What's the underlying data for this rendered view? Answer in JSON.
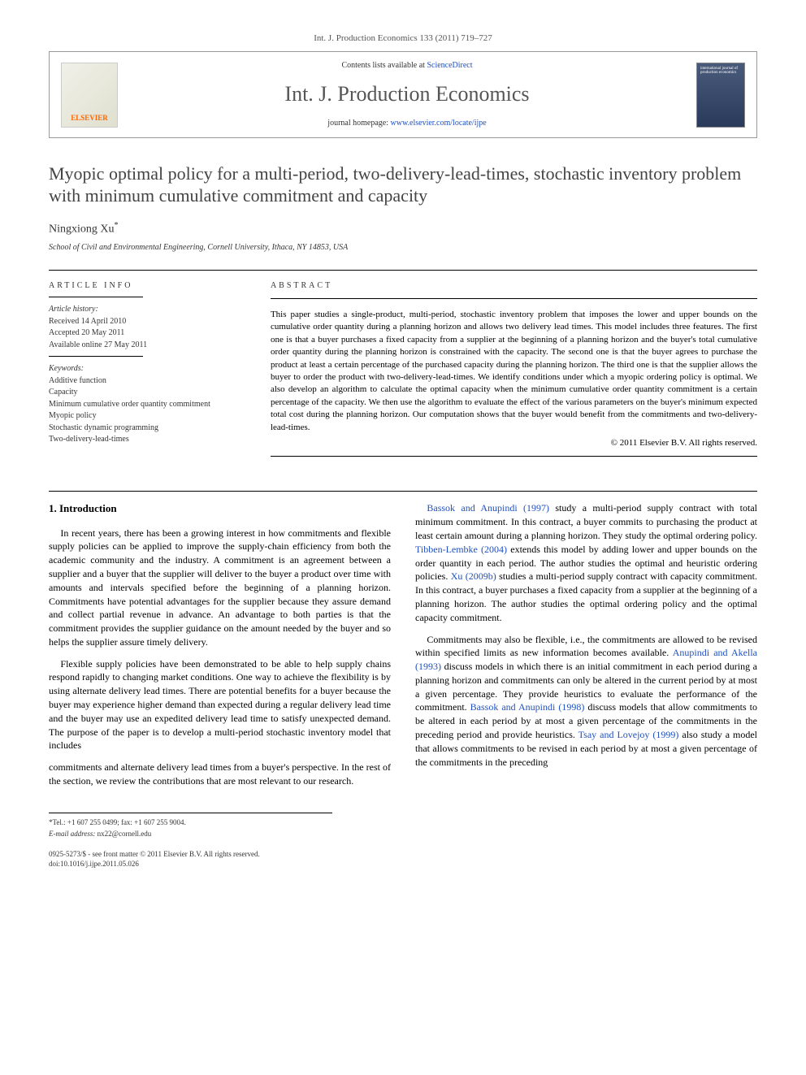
{
  "top_reference": "Int. J. Production Economics 133 (2011) 719–727",
  "header": {
    "publisher_logo_label": "ELSEVIER",
    "contents_prefix": "Contents lists available at ",
    "contents_link": "ScienceDirect",
    "journal_name": "Int. J. Production Economics",
    "homepage_prefix": "journal homepage: ",
    "homepage_link": "www.elsevier.com/locate/ijpe",
    "cover_thumb_text": "international journal of production economics"
  },
  "title": "Myopic optimal policy for a multi-period, two-delivery-lead-times, stochastic inventory problem with minimum cumulative commitment and capacity",
  "author": "Ningxiong Xu",
  "author_marker": "*",
  "affiliation": "School of Civil and Environmental Engineering, Cornell University, Ithaca, NY 14853, USA",
  "article_info": {
    "heading": "ARTICLE INFO",
    "history_label": "Article history:",
    "received": "Received 14 April 2010",
    "accepted": "Accepted 20 May 2011",
    "online": "Available online 27 May 2011",
    "keywords_label": "Keywords:",
    "keywords": [
      "Additive function",
      "Capacity",
      "Minimum cumulative order quantity commitment",
      "Myopic policy",
      "Stochastic dynamic programming",
      "Two-delivery-lead-times"
    ]
  },
  "abstract": {
    "heading": "ABSTRACT",
    "text": "This paper studies a single-product, multi-period, stochastic inventory problem that imposes the lower and upper bounds on the cumulative order quantity during a planning horizon and allows two delivery lead times. This model includes three features. The first one is that a buyer purchases a fixed capacity from a supplier at the beginning of a planning horizon and the buyer's total cumulative order quantity during the planning horizon is constrained with the capacity. The second one is that the buyer agrees to purchase the product at least a certain percentage of the purchased capacity during the planning horizon. The third one is that the supplier allows the buyer to order the product with two-delivery-lead-times. We identify conditions under which a myopic ordering policy is optimal. We also develop an algorithm to calculate the optimal capacity when the minimum cumulative order quantity commitment is a certain percentage of the capacity. We then use the algorithm to evaluate the effect of the various parameters on the buyer's minimum expected total cost during the planning horizon. Our computation shows that the buyer would benefit from the commitments and two-delivery-lead-times.",
    "copyright": "© 2011 Elsevier B.V. All rights reserved."
  },
  "body": {
    "section_heading": "1. Introduction",
    "para1": "In recent years, there has been a growing interest in how commitments and flexible supply policies can be applied to improve the supply-chain efficiency from both the academic community and the industry. A commitment is an agreement between a supplier and a buyer that the supplier will deliver to the buyer a product over time with amounts and intervals specified before the beginning of a planning horizon. Commitments have potential advantages for the supplier because they assure demand and collect partial revenue in advance. An advantage to both parties is that the commitment provides the supplier guidance on the amount needed by the buyer and so helps the supplier assure timely delivery.",
    "para2": "Flexible supply policies have been demonstrated to be able to help supply chains respond rapidly to changing market conditions. One way to achieve the flexibility is by using alternate delivery lead times. There are potential benefits for a buyer because the buyer may experience higher demand than expected during a regular delivery lead time and the buyer may use an expedited delivery lead time to satisfy unexpected demand. The purpose of the paper is to develop a multi-period stochastic inventory model that includes",
    "para3_a": "commitments and alternate delivery lead times from a buyer's perspective. In the rest of the section, we review the contributions that are most relevant to our research.",
    "para4_a": "Bassok and Anupindi (1997)",
    "para4_b": " study a multi-period supply contract with total minimum commitment. In this contract, a buyer commits to purchasing the product at least certain amount during a planning horizon. They study the optimal ordering policy. ",
    "para4_c": "Tibben-Lembke (2004)",
    "para4_d": " extends this model by adding lower and upper bounds on the order quantity in each period. The author studies the optimal and heuristic ordering policies. ",
    "para4_e": "Xu (2009b)",
    "para4_f": " studies a multi-period supply contract with capacity commitment. In this contract, a buyer purchases a fixed capacity from a supplier at the beginning of a planning horizon. The author studies the optimal ordering policy and the optimal capacity commitment.",
    "para5_a": "Commitments may also be flexible, i.e., the commitments are allowed to be revised within specified limits as new information becomes available. ",
    "para5_b": "Anupindi and Akella (1993)",
    "para5_c": " discuss models in which there is an initial commitment in each period during a planning horizon and commitments can only be altered in the current period by at most a given percentage. They provide heuristics to evaluate the performance of the commitment. ",
    "para5_d": "Bassok and Anupindi (1998)",
    "para5_e": " discuss models that allow commitments to be altered in each period by at most a given percentage of the commitments in the preceding period and provide heuristics. ",
    "para5_f": "Tsay and Lovejoy (1999)",
    "para5_g": " also study a model that allows commitments to be revised in each period by at most a given percentage of the commitments in the preceding"
  },
  "footnotes": {
    "corr": "*Tel.: +1 607 255 0499; fax: +1 607 255 9004.",
    "email_label": "E-mail address:",
    "email": " nx22@cornell.edu"
  },
  "bottom": {
    "line1": "0925-5273/$ - see front matter © 2011 Elsevier B.V. All rights reserved.",
    "line2": "doi:10.1016/j.ijpe.2011.05.026"
  },
  "colors": {
    "link": "#2050c0",
    "publisher_orange": "#ff6600",
    "text": "#000000",
    "muted": "#555555",
    "cover_bg_top": "#4a5a7a",
    "cover_bg_bottom": "#2a3a5a"
  },
  "typography": {
    "title_fontsize": 22,
    "journal_fontsize": 26,
    "body_fontsize": 12,
    "abstract_fontsize": 11,
    "info_fontsize": 10,
    "footnote_fontsize": 9
  }
}
